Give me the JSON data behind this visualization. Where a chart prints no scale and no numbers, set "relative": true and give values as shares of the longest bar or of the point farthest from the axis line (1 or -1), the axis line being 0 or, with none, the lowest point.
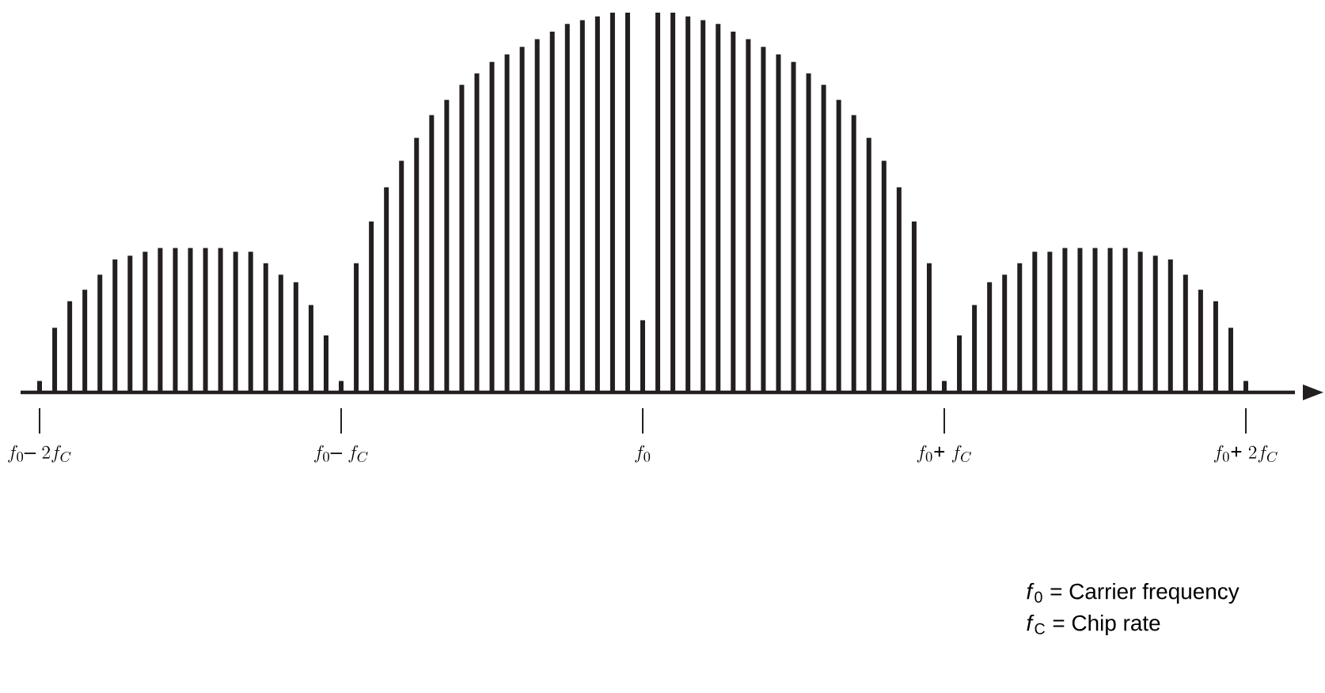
{
  "chart_data": {
    "type": "bar",
    "relative": true,
    "color": "#231f20",
    "categories": [
      "f_{0}\\text{– }2f_{C}",
      null,
      null,
      null,
      null,
      null,
      null,
      null,
      null,
      null,
      null,
      null,
      null,
      null,
      null,
      null,
      null,
      null,
      null,
      null,
      "f_{0}\\text{– }f_{C}",
      null,
      null,
      null,
      null,
      null,
      null,
      null,
      null,
      null,
      null,
      null,
      null,
      null,
      null,
      null,
      null,
      null,
      null,
      null,
      "f_{0}",
      null,
      null,
      null,
      null,
      null,
      null,
      null,
      null,
      null,
      null,
      null,
      null,
      null,
      null,
      null,
      null,
      null,
      null,
      null,
      "f_{0}\\text{+ }f_{C}",
      null,
      null,
      null,
      null,
      null,
      null,
      null,
      null,
      null,
      null,
      null,
      null,
      null,
      null,
      null,
      null,
      null,
      null,
      null,
      "f_{0}\\text{+ }2f_{C}"
    ],
    "values": [
      0.03,
      0.17,
      0.24,
      0.27,
      0.31,
      0.35,
      0.36,
      0.37,
      0.38,
      0.38,
      0.38,
      0.38,
      0.38,
      0.37,
      0.37,
      0.34,
      0.31,
      0.29,
      0.23,
      0.15,
      0.03,
      0.34,
      0.45,
      0.54,
      0.61,
      0.67,
      0.73,
      0.77,
      0.81,
      0.84,
      0.87,
      0.89,
      0.91,
      0.93,
      0.95,
      0.97,
      0.98,
      0.99,
      1.0,
      1.0,
      0.19,
      1.0,
      1.0,
      0.99,
      0.98,
      0.97,
      0.95,
      0.93,
      0.91,
      0.89,
      0.87,
      0.84,
      0.81,
      0.77,
      0.73,
      0.67,
      0.61,
      0.54,
      0.45,
      0.34,
      0.03,
      0.15,
      0.23,
      0.29,
      0.31,
      0.34,
      0.37,
      0.37,
      0.38,
      0.38,
      0.38,
      0.38,
      0.38,
      0.37,
      0.36,
      0.35,
      0.31,
      0.27,
      0.24,
      0.17,
      0.03
    ],
    "annotations": [
      "*f*$_{0}$ = Carrier frequency",
      "*f*$_{C}$ = Chip rate"
    ]
  }
}
